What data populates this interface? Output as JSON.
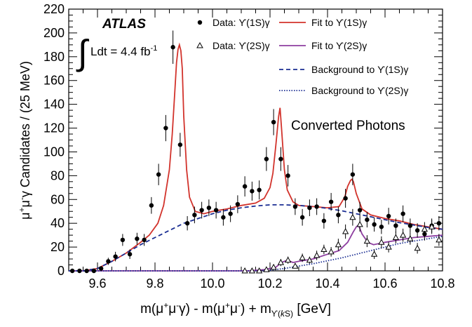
{
  "chart_data": {
    "type": "scatter",
    "experiment": "ATLAS",
    "luminosity": {
      "prefix": "Ldt = 4.4 fb",
      "sup": "-1"
    },
    "annotation": "Converted Photons",
    "xlabel": {
      "parts": [
        {
          "t": "m(μ"
        },
        {
          "t": "+",
          "sup": true
        },
        {
          "t": "μ"
        },
        {
          "t": "-",
          "sup": true
        },
        {
          "t": "γ) - m(μ"
        },
        {
          "t": "+",
          "sup": true
        },
        {
          "t": "μ"
        },
        {
          "t": "-",
          "sup": true
        },
        {
          "t": ") + m"
        },
        {
          "t": "ϒ(",
          "sub": true
        },
        {
          "t": "k",
          "sub": true,
          "italic": true
        },
        {
          "t": "S)",
          "sub": true
        },
        {
          "t": " [GeV]"
        }
      ]
    },
    "ylabel": {
      "parts": [
        {
          "t": "μ"
        },
        {
          "t": "+",
          "sup": true
        },
        {
          "t": "μ"
        },
        {
          "t": "-",
          "sup": true
        },
        {
          "t": "γ Candidates / (25 MeV)"
        }
      ]
    },
    "xlim": [
      9.5,
      10.8
    ],
    "ylim": [
      0,
      220
    ],
    "xticks": [
      9.6,
      9.8,
      10.0,
      10.2,
      10.4,
      10.6,
      10.8
    ],
    "xtick_labels": [
      "9.6",
      "9.8",
      "10.0",
      "10.2",
      "10.4",
      "10.6",
      "10.8"
    ],
    "yticks": [
      0,
      20,
      40,
      60,
      80,
      100,
      120,
      140,
      160,
      180,
      200,
      220
    ],
    "ytick_labels": [
      "0",
      "20",
      "40",
      "60",
      "80",
      "100",
      "120",
      "140",
      "160",
      "180",
      "200",
      "220"
    ],
    "legend": [
      {
        "label": "Data: ϒ(1S)γ",
        "kind": "dot"
      },
      {
        "label": "Fit to ϒ(1S)γ",
        "kind": "line",
        "color": "#d2332c",
        "dash": ""
      },
      {
        "label": "Data: ϒ(2S)γ",
        "kind": "triangle"
      },
      {
        "label": "Fit to ϒ(2S)γ",
        "kind": "line",
        "color": "#8e3ea0",
        "dash": ""
      },
      {
        "label": "Background to ϒ(1S)γ",
        "kind": "line",
        "color": "#1b2e93",
        "dash": "6,4"
      },
      {
        "label": "Background to ϒ(2S)γ",
        "kind": "line",
        "color": "#1b2e93",
        "dash": "1.5,2"
      }
    ],
    "series": [
      {
        "name": "Data: ϒ(1S)γ",
        "marker": "dot",
        "x": [
          9.5125,
          9.5375,
          9.5625,
          9.5875,
          9.6125,
          9.6375,
          9.6625,
          9.6875,
          9.7125,
          9.7375,
          9.7625,
          9.7875,
          9.8125,
          9.8375,
          9.8625,
          9.8875,
          9.9125,
          9.9375,
          9.9625,
          9.9875,
          10.0125,
          10.0375,
          10.0625,
          10.0875,
          10.1125,
          10.1375,
          10.1625,
          10.1875,
          10.2125,
          10.2375,
          10.2625,
          10.2875,
          10.3125,
          10.3375,
          10.3625,
          10.3875,
          10.4125,
          10.4375,
          10.4625,
          10.4875,
          10.5125,
          10.5375,
          10.5625,
          10.5875,
          10.6125,
          10.6375,
          10.6625,
          10.6875,
          10.7125,
          10.7375,
          10.7625,
          10.7875
        ],
        "y": [
          0,
          0,
          0,
          0,
          2,
          8,
          12,
          26,
          14,
          27,
          26,
          55,
          81,
          120,
          188,
          106,
          40,
          47,
          51,
          53,
          51,
          45,
          48,
          56,
          71,
          67,
          68,
          94,
          125,
          94,
          80,
          54,
          45,
          53,
          54,
          42,
          58,
          47,
          61,
          81,
          51,
          43,
          39,
          37,
          46,
          38,
          48,
          38,
          34,
          31,
          38,
          40
        ],
        "yerr": [
          1,
          1,
          1,
          1,
          2,
          3,
          4,
          5,
          4,
          5,
          5,
          7,
          9,
          11,
          14,
          10,
          6,
          7,
          7,
          7,
          7,
          7,
          7,
          7.5,
          8.5,
          8,
          8,
          10,
          11,
          10,
          9,
          7,
          7,
          7,
          7,
          6.5,
          7.5,
          7,
          8,
          9,
          7,
          6.5,
          6,
          6,
          7,
          6,
          7,
          6,
          6,
          5.5,
          6,
          6
        ]
      },
      {
        "name": "Data: ϒ(2S)γ",
        "marker": "triangle",
        "x": [
          10.1125,
          10.1375,
          10.1625,
          10.1875,
          10.2125,
          10.2375,
          10.2625,
          10.2875,
          10.3125,
          10.3375,
          10.3625,
          10.3875,
          10.4125,
          10.4375,
          10.4625,
          10.4875,
          10.5125,
          10.5375,
          10.5625,
          10.5875,
          10.6125,
          10.6375,
          10.6625,
          10.6875,
          10.7125,
          10.7375,
          10.7625,
          10.7875
        ],
        "y": [
          0,
          0,
          0,
          1,
          3,
          7,
          9,
          4,
          11,
          9,
          13,
          18,
          16,
          22,
          33,
          45,
          39,
          25,
          14,
          24,
          20,
          28,
          30,
          27,
          19,
          35,
          37,
          26
        ],
        "yerr": [
          1,
          1,
          1,
          1.5,
          2,
          3,
          3,
          2,
          3.5,
          3,
          4,
          4,
          4,
          5,
          6,
          7,
          6,
          5,
          4,
          5,
          4.5,
          5,
          5.5,
          5,
          4.5,
          6,
          6,
          5
        ]
      }
    ],
    "curves": [
      {
        "name": "Fit to ϒ(1S)γ",
        "x": [
          9.5,
          9.55,
          9.6,
          9.65,
          9.7,
          9.75,
          9.78,
          9.81,
          9.83,
          9.85,
          9.86,
          9.87,
          9.875,
          9.88,
          9.885,
          9.89,
          9.895,
          9.9,
          9.91,
          9.92,
          9.94,
          9.97,
          10.0,
          10.05,
          10.1,
          10.15,
          10.18,
          10.2,
          10.21,
          10.22,
          10.23,
          10.235,
          10.24,
          10.25,
          10.26,
          10.28,
          10.3,
          10.35,
          10.4,
          10.44,
          10.46,
          10.47,
          10.48,
          10.485,
          10.49,
          10.5,
          10.52,
          10.55,
          10.6,
          10.65,
          10.7,
          10.75,
          10.8
        ],
        "y": [
          0,
          0,
          2,
          8,
          15,
          24,
          30,
          40,
          55,
          85,
          115,
          155,
          175,
          186,
          190,
          185,
          170,
          130,
          85,
          62,
          50,
          48,
          50,
          52,
          55,
          57,
          61,
          70,
          82,
          105,
          130,
          137,
          120,
          85,
          68,
          58,
          55,
          54,
          53,
          54,
          62,
          71,
          76,
          77,
          75,
          65,
          52,
          47,
          44,
          42,
          39,
          37,
          35
        ]
      },
      {
        "name": "Fit to ϒ(2S)γ",
        "x": [
          9.5,
          10.0,
          10.12,
          10.18,
          10.22,
          10.24,
          10.26,
          10.28,
          10.3,
          10.35,
          10.4,
          10.44,
          10.47,
          10.49,
          10.5,
          10.505,
          10.51,
          10.52,
          10.54,
          10.56,
          10.6,
          10.65,
          10.7,
          10.75,
          10.8
        ],
        "y": [
          0,
          0,
          0,
          1,
          3,
          7,
          9,
          7,
          8,
          10,
          14,
          17,
          24,
          33,
          37,
          38,
          37,
          31,
          24,
          22,
          24,
          26,
          28,
          29,
          30
        ]
      },
      {
        "name": "Background to ϒ(1S)γ",
        "x": [
          9.5,
          9.55,
          9.6,
          9.65,
          9.7,
          9.75,
          9.8,
          9.85,
          9.9,
          9.95,
          10.0,
          10.05,
          10.1,
          10.15,
          10.2,
          10.25,
          10.3,
          10.35,
          10.4,
          10.45,
          10.5,
          10.55,
          10.6,
          10.65,
          10.7,
          10.75,
          10.8
        ],
        "y": [
          0,
          0,
          2,
          8,
          15,
          22,
          28,
          34,
          40,
          44,
          48,
          51,
          53,
          54.5,
          55.5,
          55.5,
          55,
          54,
          52.5,
          50.5,
          48,
          45.5,
          43,
          40.5,
          38.5,
          36.5,
          35
        ]
      },
      {
        "name": "Background to ϒ(2S)γ",
        "x": [
          9.5,
          10.0,
          10.15,
          10.2,
          10.25,
          10.3,
          10.35,
          10.4,
          10.45,
          10.5,
          10.55,
          10.6,
          10.65,
          10.7,
          10.75,
          10.8
        ],
        "y": [
          0,
          0,
          0,
          0.5,
          2,
          4,
          6,
          8.5,
          11,
          14,
          17,
          20,
          23,
          25,
          27,
          29
        ]
      }
    ]
  }
}
